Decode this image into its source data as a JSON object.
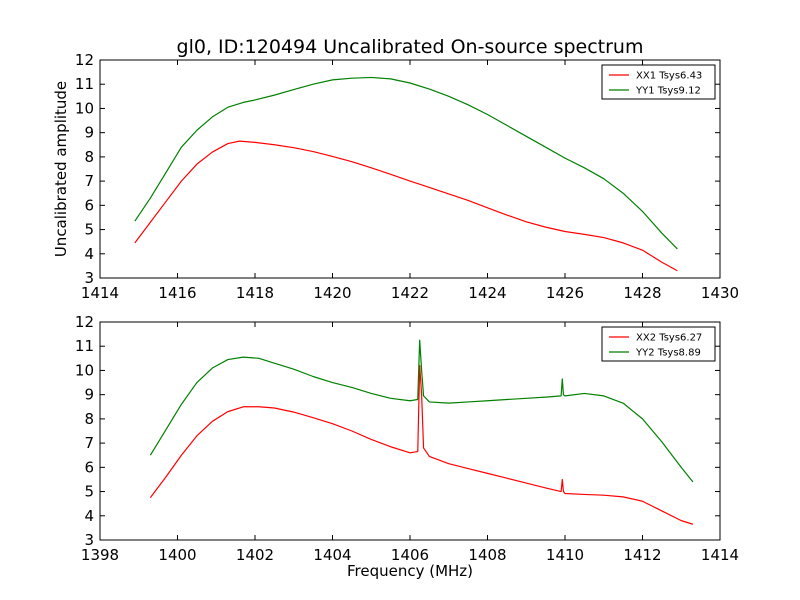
{
  "title": "gl0, ID:120494 Uncalibrated On-source spectrum",
  "colors": {
    "xx": "#ff0000",
    "yy": "#008000"
  },
  "chart_data": [
    {
      "type": "line",
      "xlim": [
        1414,
        1430
      ],
      "ylim": [
        3,
        12
      ],
      "x_ticks": [
        1414,
        1416,
        1418,
        1420,
        1422,
        1424,
        1426,
        1428,
        1430
      ],
      "y_ticks": [
        3,
        4,
        5,
        6,
        7,
        8,
        9,
        10,
        11,
        12
      ],
      "xlabel": "",
      "ylabel": "Uncalibrated amplitude",
      "legend": "top-right",
      "series": [
        {
          "name": "XX1 Tsys6.43",
          "color": "#ff0000",
          "x": [
            1414.9,
            1415.3,
            1415.7,
            1416.1,
            1416.5,
            1416.9,
            1417.3,
            1417.6,
            1418.0,
            1418.5,
            1419.0,
            1419.5,
            1420.0,
            1420.5,
            1421.0,
            1421.5,
            1422.0,
            1422.5,
            1423.0,
            1423.5,
            1424.0,
            1424.5,
            1425.0,
            1425.5,
            1426.0,
            1426.5,
            1427.0,
            1427.5,
            1428.0,
            1428.5,
            1428.9
          ],
          "values": [
            4.45,
            5.3,
            6.15,
            7.0,
            7.7,
            8.2,
            8.55,
            8.65,
            8.6,
            8.5,
            8.38,
            8.22,
            8.02,
            7.8,
            7.55,
            7.28,
            7.0,
            6.74,
            6.47,
            6.2,
            5.9,
            5.6,
            5.32,
            5.1,
            4.92,
            4.8,
            4.67,
            4.45,
            4.15,
            3.65,
            3.3
          ]
        },
        {
          "name": "YY1 Tsys9.12",
          "color": "#008000",
          "x": [
            1414.9,
            1415.3,
            1415.7,
            1416.1,
            1416.5,
            1416.9,
            1417.3,
            1417.7,
            1418.0,
            1418.5,
            1419.0,
            1419.5,
            1420.0,
            1420.5,
            1421.0,
            1421.5,
            1422.0,
            1422.5,
            1423.0,
            1423.5,
            1424.0,
            1424.5,
            1425.0,
            1425.5,
            1426.0,
            1426.5,
            1427.0,
            1427.5,
            1428.0,
            1428.5,
            1428.9
          ],
          "values": [
            5.35,
            6.3,
            7.35,
            8.4,
            9.1,
            9.65,
            10.05,
            10.25,
            10.35,
            10.55,
            10.78,
            11.0,
            11.18,
            11.25,
            11.28,
            11.22,
            11.05,
            10.8,
            10.5,
            10.15,
            9.75,
            9.3,
            8.85,
            8.4,
            7.95,
            7.55,
            7.1,
            6.5,
            5.75,
            4.85,
            4.2
          ]
        }
      ]
    },
    {
      "type": "line",
      "xlim": [
        1398,
        1414
      ],
      "ylim": [
        3,
        12
      ],
      "x_ticks": [
        1398,
        1400,
        1402,
        1404,
        1406,
        1408,
        1410,
        1412,
        1414
      ],
      "y_ticks": [
        3,
        4,
        5,
        6,
        7,
        8,
        9,
        10,
        11,
        12
      ],
      "xlabel": "Frequency (MHz)",
      "ylabel": "",
      "legend": "top-right",
      "series": [
        {
          "name": "XX2 Tsys6.27",
          "color": "#ff0000",
          "x": [
            1399.3,
            1399.7,
            1400.1,
            1400.5,
            1400.9,
            1401.3,
            1401.7,
            1402.1,
            1402.5,
            1403.0,
            1403.5,
            1404.0,
            1404.5,
            1405.0,
            1405.5,
            1406.0,
            1406.2,
            1406.25,
            1406.3,
            1406.35,
            1406.5,
            1407.0,
            1407.5,
            1408.0,
            1408.5,
            1409.0,
            1409.5,
            1409.9,
            1409.93,
            1409.96,
            1410.0,
            1410.5,
            1411.0,
            1411.5,
            1412.0,
            1412.5,
            1413.0,
            1413.3
          ],
          "values": [
            4.75,
            5.6,
            6.5,
            7.3,
            7.9,
            8.3,
            8.5,
            8.5,
            8.45,
            8.28,
            8.05,
            7.8,
            7.5,
            7.15,
            6.85,
            6.6,
            6.65,
            10.2,
            9.0,
            6.8,
            6.45,
            6.15,
            5.95,
            5.75,
            5.55,
            5.35,
            5.15,
            5.0,
            5.5,
            5.0,
            4.92,
            4.88,
            4.85,
            4.78,
            4.6,
            4.2,
            3.8,
            3.65
          ]
        },
        {
          "name": "YY2 Tsys8.89",
          "color": "#008000",
          "x": [
            1399.3,
            1399.7,
            1400.1,
            1400.5,
            1400.9,
            1401.3,
            1401.7,
            1402.1,
            1402.5,
            1403.0,
            1403.5,
            1404.0,
            1404.5,
            1405.0,
            1405.5,
            1406.0,
            1406.2,
            1406.25,
            1406.3,
            1406.35,
            1406.5,
            1407.0,
            1407.5,
            1408.0,
            1408.5,
            1409.0,
            1409.5,
            1409.9,
            1409.93,
            1409.96,
            1410.0,
            1410.5,
            1411.0,
            1411.5,
            1412.0,
            1412.5,
            1413.0,
            1413.3
          ],
          "values": [
            6.5,
            7.55,
            8.6,
            9.5,
            10.1,
            10.45,
            10.55,
            10.5,
            10.3,
            10.05,
            9.75,
            9.5,
            9.3,
            9.05,
            8.85,
            8.75,
            8.8,
            11.25,
            10.0,
            8.95,
            8.7,
            8.65,
            8.7,
            8.75,
            8.8,
            8.85,
            8.9,
            8.95,
            9.65,
            9.0,
            8.95,
            9.05,
            8.95,
            8.65,
            8.0,
            7.05,
            6.0,
            5.4
          ]
        }
      ]
    }
  ]
}
